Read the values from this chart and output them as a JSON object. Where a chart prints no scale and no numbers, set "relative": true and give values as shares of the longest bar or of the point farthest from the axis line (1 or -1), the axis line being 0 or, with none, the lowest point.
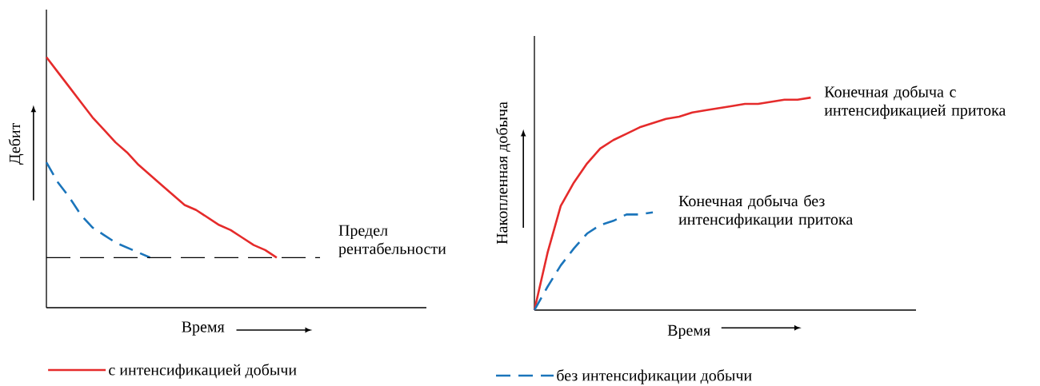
{
  "chart_data": [
    {
      "type": "line",
      "relative": true,
      "ylabel": "Дебит",
      "xlabel": "Время",
      "legend": "bottom",
      "categories": [
        null,
        null,
        null,
        null,
        null,
        null,
        null,
        null,
        null,
        null,
        null,
        null,
        null,
        null,
        null,
        null,
        null,
        null,
        null,
        null,
        null,
        null,
        null,
        null,
        null,
        null,
        null,
        null,
        null,
        null,
        null,
        null,
        null,
        null
      ],
      "series": [
        {
          "name": "с интенсификацией добычи",
          "color": "#e52b2b",
          "line_style": "solid",
          "values": [
            1.0,
            0.94,
            0.88,
            0.82,
            0.76,
            0.71,
            0.66,
            0.62,
            0.57,
            0.53,
            0.49,
            0.45,
            0.41,
            0.39,
            0.36,
            0.33,
            0.31,
            0.28,
            0.25,
            0.23,
            0.2,
            null,
            null,
            null,
            null,
            null,
            null,
            null,
            null,
            null,
            null,
            null,
            null,
            null
          ]
        },
        {
          "color": "#1b75bb",
          "line_style": "dashed",
          "values": [
            0.58,
            0.5,
            0.44,
            0.37,
            0.32,
            0.29,
            0.26,
            0.24,
            0.22,
            0.2,
            null,
            null,
            null,
            null,
            null,
            null,
            null,
            null,
            null,
            null,
            null,
            null,
            null,
            null,
            null,
            null,
            null,
            null,
            null,
            null,
            null,
            null,
            null,
            null
          ]
        }
      ],
      "ref_lines": [
        {
          "axis": "y",
          "value": 0.2,
          "label": "Предел рентабельности",
          "color": "#000000",
          "line_style": "dashed"
        }
      ]
    },
    {
      "type": "line",
      "relative": true,
      "ylabel": "Накопленная добыча",
      "xlabel": "Время",
      "legend": "bottom",
      "categories": [
        null,
        null,
        null,
        null,
        null,
        null,
        null,
        null,
        null,
        null,
        null,
        null,
        null,
        null,
        null,
        null,
        null,
        null,
        null,
        null,
        null,
        null,
        null,
        null,
        null,
        null,
        null,
        null,
        null,
        null
      ],
      "series": [
        {
          "color": "#e52b2b",
          "line_style": "solid",
          "values": [
            0,
            0.27,
            0.49,
            0.6,
            0.69,
            0.76,
            0.8,
            0.83,
            0.86,
            0.88,
            0.9,
            0.91,
            0.93,
            0.94,
            0.95,
            0.96,
            0.97,
            0.97,
            0.98,
            0.99,
            0.99,
            1.0,
            null,
            null,
            null,
            null,
            null,
            null,
            null,
            null
          ]
        },
        {
          "name": "без интенсификации добычи",
          "color": "#1b75bb",
          "line_style": "dashed",
          "values": [
            0,
            0.11,
            0.21,
            0.29,
            0.36,
            0.4,
            0.42,
            0.45,
            0.45,
            0.46,
            null,
            null,
            null,
            null,
            null,
            null,
            null,
            null,
            null,
            null,
            null,
            null,
            null,
            null,
            null,
            null,
            null,
            null,
            null,
            null
          ]
        }
      ],
      "annotations": [
        "Конечная добыча с интенсификацией притока",
        "Конечная добыча без интенсификации притока"
      ]
    }
  ]
}
